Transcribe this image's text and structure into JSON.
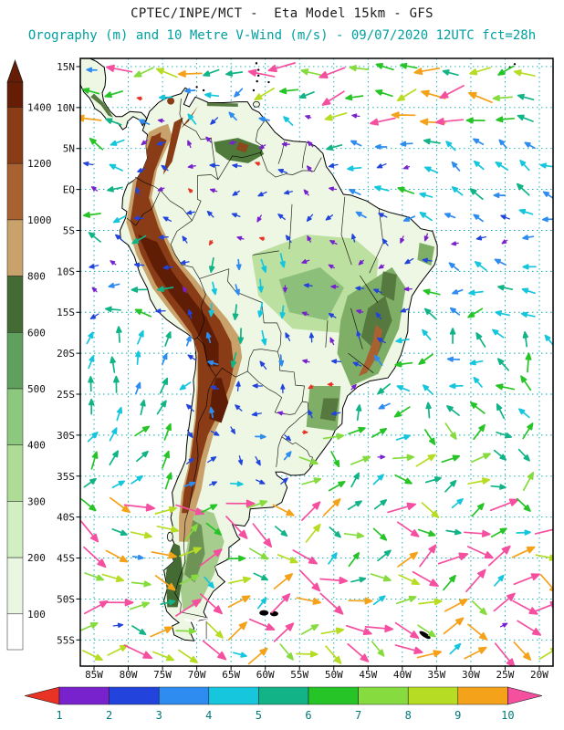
{
  "header": {
    "title": "CPTEC/INPE/MCT -  Eta Model 15km - GFS",
    "subtitle": "Orography (m) and 10 Metre V-Wind (m/s) - 09/07/2020 12UTC fct=28h"
  },
  "axes": {
    "lat_labels": [
      "15N",
      "10N",
      "5N",
      "EQ",
      "5S",
      "10S",
      "15S",
      "20S",
      "25S",
      "30S",
      "35S",
      "40S",
      "45S",
      "50S",
      "55S"
    ],
    "lat_values": [
      15,
      10,
      5,
      0,
      -5,
      -10,
      -15,
      -20,
      -25,
      -30,
      -35,
      -40,
      -45,
      -50,
      -55
    ],
    "lon_labels": [
      "85W",
      "80W",
      "75W",
      "70W",
      "65W",
      "60W",
      "55W",
      "50W",
      "45W",
      "40W",
      "35W",
      "30W",
      "25W",
      "20W"
    ],
    "lon_values": [
      -85,
      -80,
      -75,
      -70,
      -65,
      -60,
      -55,
      -50,
      -45,
      -40,
      -35,
      -30,
      -25,
      -20
    ]
  },
  "elevation_legend": {
    "units": "m",
    "tick_labels": [
      "100",
      "200",
      "300",
      "400",
      "500",
      "600",
      "800",
      "1000",
      "1200",
      "1400"
    ],
    "segment_colors_low_to_high": [
      "#FFFFFF",
      "#E9F7E2",
      "#D2EEC3",
      "#AEDC96",
      "#8CC87E",
      "#5FA05E",
      "#456B35",
      "#C9A26B",
      "#A86232",
      "#8A3C16"
    ],
    "over_color": "#651E05"
  },
  "wind_legend": {
    "units": "m/s",
    "tick_labels": [
      "1",
      "2",
      "3",
      "4",
      "5",
      "6",
      "7",
      "8",
      "9",
      "10"
    ],
    "segment_colors": [
      "#7722CC",
      "#2244DD",
      "#2E8CF0",
      "#15C6DC",
      "#12B487",
      "#27C427",
      "#86DC3F",
      "#B7DC24",
      "#F5A21B"
    ],
    "under_color": "#E83223",
    "over_color": "#F54FA0"
  },
  "style": {
    "grid_color": "#00AAAA",
    "subtitle_color": "#00A0A0",
    "axis_label_color": "#111111",
    "wind_label_color": "#007878",
    "land_base_color": "#EDF7E3",
    "coast_color": "#000000",
    "frame_color": "#000000"
  }
}
